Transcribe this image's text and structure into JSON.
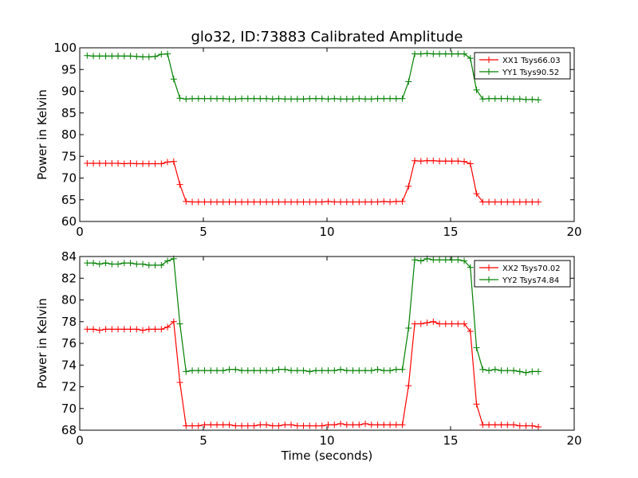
{
  "chart_data": [
    {
      "type": "line",
      "title": "glo32, ID:73883 Calibrated Amplitude",
      "xlabel": "",
      "ylabel": "Power in Kelvin",
      "xlim": [
        0,
        20
      ],
      "ylim": [
        60,
        100
      ],
      "xticks": [
        "0",
        "5",
        "10",
        "15",
        "20"
      ],
      "yticks": [
        "60",
        "65",
        "70",
        "75",
        "80",
        "85",
        "90",
        "95",
        "100"
      ],
      "legend_position": "top-right",
      "grid": false,
      "x": [
        0.3,
        0.55,
        0.8,
        1.05,
        1.3,
        1.55,
        1.8,
        2.05,
        2.3,
        2.55,
        2.8,
        3.05,
        3.3,
        3.55,
        3.8,
        4.05,
        4.3,
        4.55,
        4.8,
        5.05,
        5.3,
        5.55,
        5.8,
        6.05,
        6.3,
        6.55,
        6.8,
        7.05,
        7.3,
        7.55,
        7.8,
        8.05,
        8.3,
        8.55,
        8.8,
        9.05,
        9.3,
        9.55,
        9.8,
        10.05,
        10.3,
        10.55,
        10.8,
        11.05,
        11.3,
        11.55,
        11.8,
        12.05,
        12.3,
        12.55,
        12.8,
        13.05,
        13.3,
        13.55,
        13.8,
        14.05,
        14.3,
        14.55,
        14.8,
        15.05,
        15.3,
        15.55,
        15.8,
        16.05,
        16.3,
        16.55,
        16.8,
        17.05,
        17.3,
        17.55,
        17.8,
        18.05,
        18.3,
        18.55
      ],
      "series": [
        {
          "name": "XX1 Tsys66.03",
          "color": "#ff0000",
          "values": [
            73.4,
            73.4,
            73.4,
            73.4,
            73.4,
            73.4,
            73.3,
            73.4,
            73.3,
            73.3,
            73.3,
            73.3,
            73.3,
            73.7,
            73.8,
            68.5,
            64.6,
            64.5,
            64.5,
            64.5,
            64.5,
            64.5,
            64.5,
            64.5,
            64.5,
            64.5,
            64.5,
            64.5,
            64.5,
            64.5,
            64.5,
            64.5,
            64.5,
            64.5,
            64.5,
            64.5,
            64.5,
            64.5,
            64.5,
            64.6,
            64.5,
            64.5,
            64.5,
            64.5,
            64.5,
            64.5,
            64.5,
            64.5,
            64.6,
            64.5,
            64.6,
            64.6,
            68.1,
            74.0,
            73.9,
            74.0,
            74.0,
            73.9,
            73.9,
            73.9,
            73.9,
            73.8,
            73.3,
            66.4,
            64.5,
            64.5,
            64.5,
            64.5,
            64.5,
            64.5,
            64.5,
            64.5,
            64.5,
            64.5
          ]
        },
        {
          "name": "YY1 Tsys90.52",
          "color": "#008000",
          "values": [
            98.2,
            98.1,
            98.1,
            98.1,
            98.1,
            98.1,
            98.1,
            98.1,
            98.0,
            97.9,
            97.9,
            98.0,
            98.5,
            98.6,
            92.8,
            88.4,
            88.2,
            88.3,
            88.3,
            88.3,
            88.3,
            88.3,
            88.3,
            88.2,
            88.2,
            88.3,
            88.3,
            88.3,
            88.3,
            88.3,
            88.2,
            88.3,
            88.2,
            88.2,
            88.2,
            88.2,
            88.3,
            88.3,
            88.3,
            88.2,
            88.3,
            88.2,
            88.2,
            88.2,
            88.3,
            88.2,
            88.2,
            88.3,
            88.3,
            88.3,
            88.3,
            88.3,
            92.2,
            98.6,
            98.6,
            98.7,
            98.6,
            98.6,
            98.6,
            98.6,
            98.6,
            98.6,
            97.6,
            90.3,
            88.2,
            88.3,
            88.3,
            88.3,
            88.3,
            88.2,
            88.2,
            88.1,
            88.1,
            88.0
          ]
        }
      ]
    },
    {
      "type": "line",
      "title": "",
      "xlabel": "Time (seconds)",
      "ylabel": "Power in Kelvin",
      "xlim": [
        0,
        20
      ],
      "ylim": [
        68,
        84
      ],
      "xticks": [
        "0",
        "5",
        "10",
        "15",
        "20"
      ],
      "yticks": [
        "68",
        "70",
        "72",
        "74",
        "76",
        "78",
        "80",
        "82",
        "84"
      ],
      "legend_position": "top-right",
      "grid": false,
      "x": [
        0.3,
        0.55,
        0.8,
        1.05,
        1.3,
        1.55,
        1.8,
        2.05,
        2.3,
        2.55,
        2.8,
        3.05,
        3.3,
        3.55,
        3.8,
        4.05,
        4.3,
        4.55,
        4.8,
        5.05,
        5.3,
        5.55,
        5.8,
        6.05,
        6.3,
        6.55,
        6.8,
        7.05,
        7.3,
        7.55,
        7.8,
        8.05,
        8.3,
        8.55,
        8.8,
        9.05,
        9.3,
        9.55,
        9.8,
        10.05,
        10.3,
        10.55,
        10.8,
        11.05,
        11.3,
        11.55,
        11.8,
        12.05,
        12.3,
        12.55,
        12.8,
        13.05,
        13.3,
        13.55,
        13.8,
        14.05,
        14.3,
        14.55,
        14.8,
        15.05,
        15.3,
        15.55,
        15.8,
        16.05,
        16.3,
        16.55,
        16.8,
        17.05,
        17.3,
        17.55,
        17.8,
        18.05,
        18.3,
        18.55
      ],
      "series": [
        {
          "name": "XX2 Tsys70.02",
          "color": "#ff0000",
          "values": [
            77.3,
            77.3,
            77.2,
            77.3,
            77.3,
            77.3,
            77.3,
            77.3,
            77.3,
            77.2,
            77.3,
            77.3,
            77.3,
            77.5,
            78.0,
            72.4,
            68.4,
            68.4,
            68.4,
            68.5,
            68.5,
            68.5,
            68.5,
            68.5,
            68.4,
            68.4,
            68.4,
            68.4,
            68.5,
            68.5,
            68.4,
            68.4,
            68.5,
            68.5,
            68.4,
            68.4,
            68.4,
            68.4,
            68.4,
            68.5,
            68.5,
            68.6,
            68.5,
            68.5,
            68.5,
            68.6,
            68.5,
            68.5,
            68.5,
            68.5,
            68.5,
            68.5,
            72.1,
            77.8,
            77.8,
            77.9,
            78.0,
            77.8,
            77.8,
            77.8,
            77.8,
            77.8,
            77.1,
            70.4,
            68.5,
            68.5,
            68.5,
            68.5,
            68.5,
            68.5,
            68.4,
            68.4,
            68.4,
            68.3
          ]
        },
        {
          "name": "YY2 Tsys74.84",
          "color": "#008000",
          "values": [
            83.4,
            83.4,
            83.3,
            83.4,
            83.3,
            83.3,
            83.4,
            83.4,
            83.3,
            83.3,
            83.2,
            83.2,
            83.2,
            83.6,
            83.8,
            77.8,
            73.4,
            73.5,
            73.5,
            73.5,
            73.5,
            73.5,
            73.5,
            73.6,
            73.6,
            73.5,
            73.5,
            73.5,
            73.5,
            73.5,
            73.5,
            73.6,
            73.6,
            73.5,
            73.5,
            73.5,
            73.4,
            73.5,
            73.5,
            73.5,
            73.5,
            73.6,
            73.5,
            73.5,
            73.5,
            73.5,
            73.5,
            73.6,
            73.5,
            73.5,
            73.6,
            73.6,
            77.4,
            83.7,
            83.6,
            83.8,
            83.7,
            83.7,
            83.7,
            83.7,
            83.7,
            83.6,
            83.0,
            75.6,
            73.6,
            73.5,
            73.6,
            73.5,
            73.5,
            73.5,
            73.4,
            73.3,
            73.4,
            73.4
          ]
        }
      ]
    }
  ]
}
